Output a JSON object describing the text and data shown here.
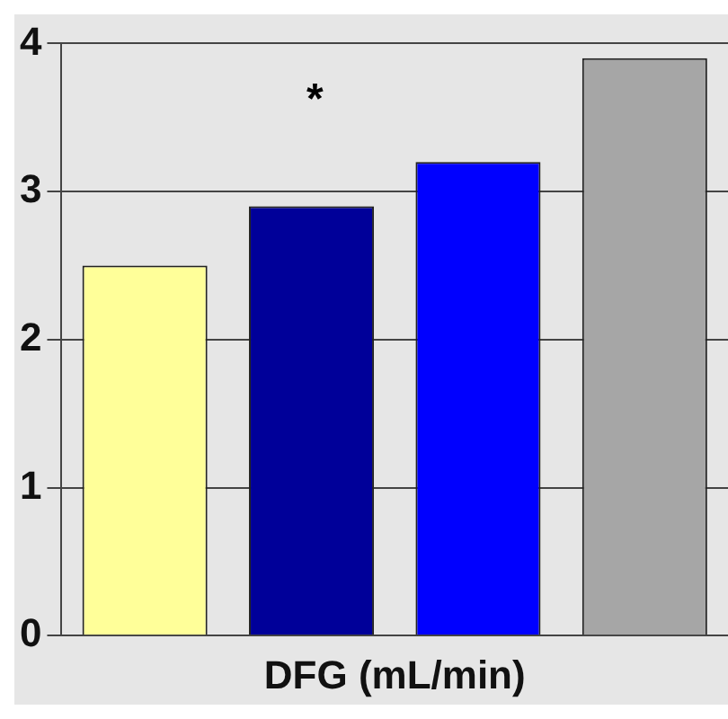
{
  "chart_data": {
    "type": "bar",
    "xlabel": "DFG (mL/min)",
    "categories": [
      null,
      null,
      null,
      null
    ],
    "values": [
      2.5,
      2.9,
      3.2,
      3.9
    ],
    "colors": [
      "#ffff99",
      "#000099",
      "#0000ff",
      "#a6a6a6"
    ],
    "ylim": [
      0,
      4
    ],
    "yticks": [
      0,
      1,
      2,
      3,
      4
    ],
    "grid": "y",
    "annotations": [
      "*"
    ]
  }
}
